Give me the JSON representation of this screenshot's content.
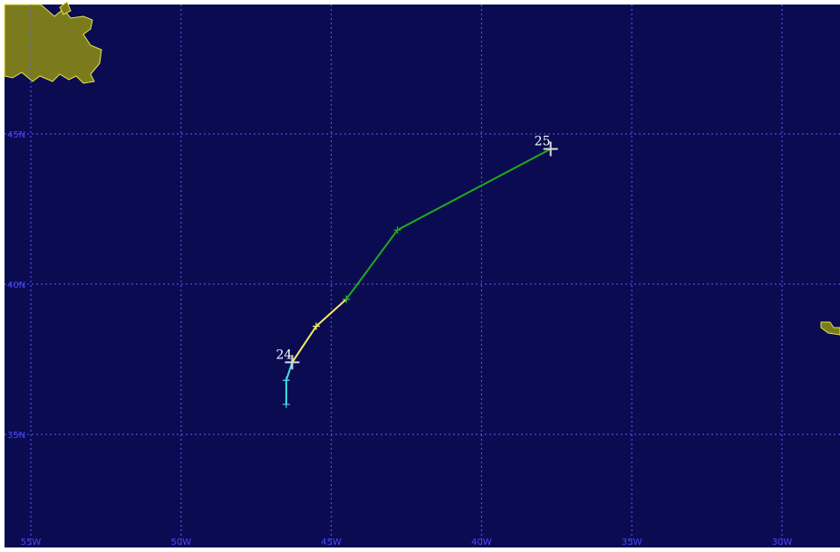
{
  "map": {
    "ocean_color": "#0b0b52",
    "grid_color": "#5a5aff",
    "land_fill": "#7b7b1e",
    "land_outline": "#e6e64a",
    "lon_labels": [
      "55W",
      "50W",
      "45W",
      "40W",
      "35W",
      "30W"
    ],
    "lat_labels": [
      "45N",
      "40N",
      "35N"
    ],
    "lon_values": [
      -55,
      -50,
      -45,
      -40,
      -35,
      -30
    ],
    "lat_values": [
      45,
      40,
      35
    ]
  },
  "storm_track": {
    "segments": [
      {
        "color": "#40e0e0",
        "points": [
          {
            "lon": -46.5,
            "lat": 36.0
          },
          {
            "lon": -46.5,
            "lat": 36.8
          },
          {
            "lon": -46.3,
            "lat": 37.4
          }
        ]
      },
      {
        "color": "#f0f060",
        "points": [
          {
            "lon": -46.3,
            "lat": 37.4
          },
          {
            "lon": -45.5,
            "lat": 38.6
          },
          {
            "lon": -44.5,
            "lat": 39.5
          }
        ]
      },
      {
        "color": "#1faa1f",
        "points": [
          {
            "lon": -44.5,
            "lat": 39.5
          },
          {
            "lon": -42.8,
            "lat": 41.8
          },
          {
            "lon": -37.7,
            "lat": 44.5
          }
        ]
      }
    ],
    "day_labels": [
      {
        "text": "24",
        "lon": -46.3,
        "lat": 37.4
      },
      {
        "text": "25",
        "lon": -37.7,
        "lat": 44.5
      }
    ]
  }
}
